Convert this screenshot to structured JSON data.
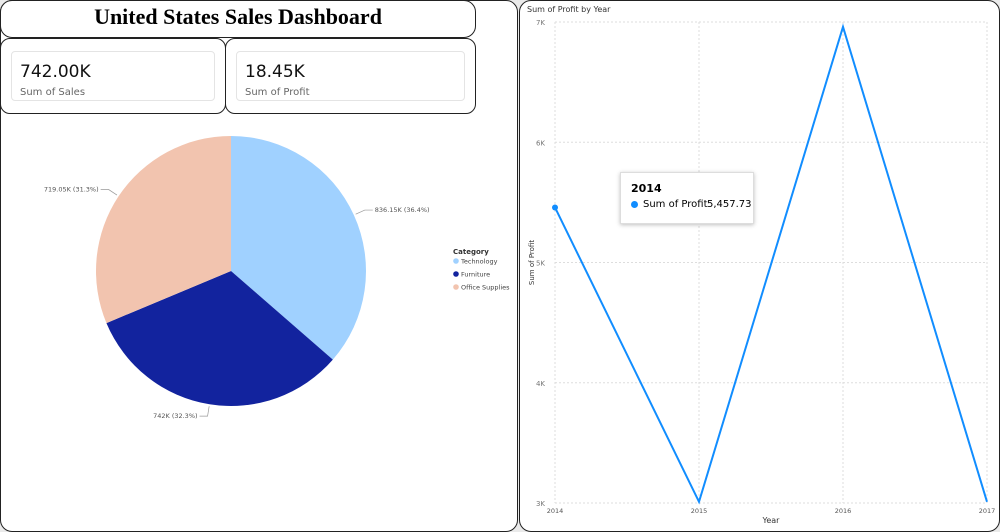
{
  "header": {
    "title": "United States Sales Dashboard"
  },
  "cards": [
    {
      "value": "742.00K",
      "label": "Sum of Sales"
    },
    {
      "value": "18.45K",
      "label": "Sum of Profit"
    }
  ],
  "chart_data": [
    {
      "type": "pie",
      "legend_title": "Category",
      "legend": "right",
      "categories": [
        "Technology",
        "Furniture",
        "Office Supplies"
      ],
      "values": [
        836150,
        742000,
        719050
      ],
      "value_labels": [
        "836.15K (36.4%)",
        "742K (32.3%)",
        "719.05K (31.3%)"
      ],
      "colors": [
        "#a0d1ff",
        "#12239e",
        "#f2c4af"
      ]
    },
    {
      "type": "line",
      "title": "Sum of Profit by Year",
      "x_label": "Year",
      "y_label": "Sum of Profit",
      "x": [
        2014,
        2015,
        2016,
        2017
      ],
      "xlim": [
        2014,
        2017
      ],
      "xticks": [
        2014,
        2015,
        2016,
        2017
      ],
      "series": [
        {
          "name": "Sum of Profit",
          "color": "#118dff",
          "values": [
            5457.73,
            3010,
            6960,
            3010
          ]
        }
      ],
      "ylim": [
        3000,
        7000
      ],
      "yticks": [
        {
          "value": 3000,
          "label": "3K"
        },
        {
          "value": 4000,
          "label": "4K"
        },
        {
          "value": 5000,
          "label": "5K"
        },
        {
          "value": 6000,
          "label": "6K"
        },
        {
          "value": 7000,
          "label": "7K"
        }
      ],
      "grid": true,
      "tooltip_value": "5,457.73"
    }
  ]
}
